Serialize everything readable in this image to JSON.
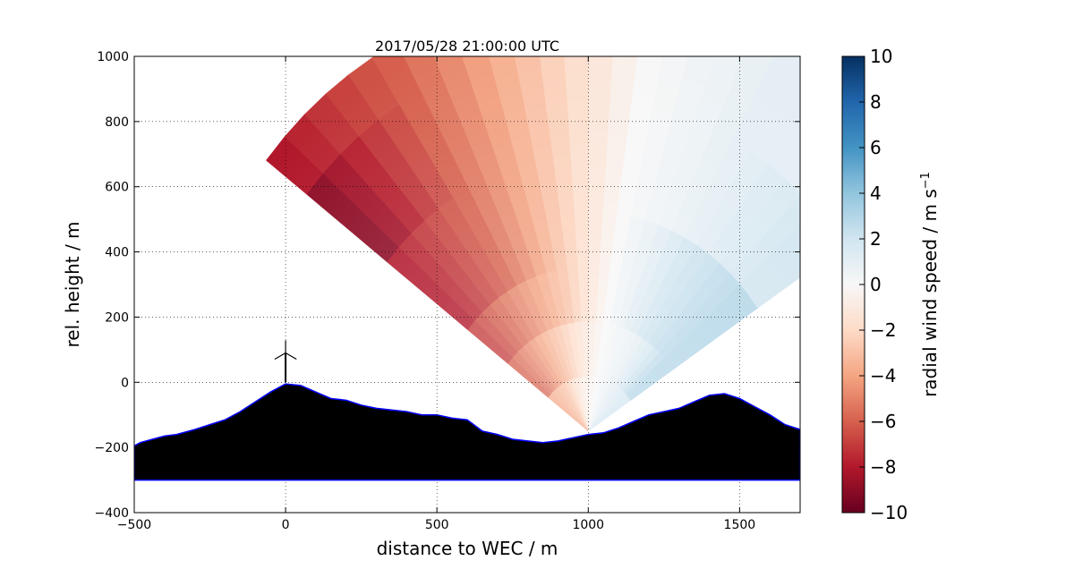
{
  "chart_data": {
    "type": "heatmap",
    "title": "2017/05/28 21:00:00 UTC",
    "xlabel": "distance to WEC / m",
    "ylabel": "rel. height / m",
    "xlim": [
      -500,
      1700
    ],
    "ylim": [
      -400,
      1000
    ],
    "xticks": [
      -500,
      0,
      500,
      1000,
      1500
    ],
    "yticks": [
      -400,
      -200,
      0,
      200,
      400,
      600,
      800,
      1000
    ],
    "xtick_labels": [
      "−500",
      "0",
      "500",
      "1000",
      "1500"
    ],
    "ytick_labels": [
      "−400",
      "−200",
      "0",
      "200",
      "400",
      "600",
      "800",
      "1000"
    ],
    "grid": true,
    "scan": {
      "center": [
        1000,
        -150
      ],
      "azimuth_range_deg": [
        34,
        142
      ],
      "range_m": [
        0,
        1350
      ],
      "radial_wind_speed_by_elevation": [
        {
          "elevation_deg": 140,
          "values": [
            -4,
            -6,
            -7,
            -8,
            -8,
            -9,
            -9,
            -8
          ]
        },
        {
          "elevation_deg": 120,
          "values": [
            -3,
            -4,
            -5,
            -6,
            -6,
            -6,
            -6,
            -6
          ]
        },
        {
          "elevation_deg": 100,
          "values": [
            -1,
            -2,
            -3,
            -3,
            -3,
            -3,
            -3,
            -3
          ]
        },
        {
          "elevation_deg": 80,
          "values": [
            0,
            0,
            0,
            0,
            0,
            0,
            0,
            0
          ]
        },
        {
          "elevation_deg": 60,
          "values": [
            1,
            1,
            2,
            2,
            1,
            1,
            1,
            1
          ]
        },
        {
          "elevation_deg": 40,
          "values": [
            2,
            3,
            3,
            3,
            2,
            2,
            1,
            1
          ]
        }
      ]
    },
    "terrain": {
      "x": [
        -500,
        -480,
        -440,
        -400,
        -360,
        -300,
        -250,
        -200,
        -150,
        -100,
        -50,
        0,
        50,
        100,
        150,
        200,
        250,
        300,
        350,
        400,
        450,
        500,
        550,
        600,
        650,
        700,
        750,
        800,
        850,
        900,
        950,
        1000,
        1050,
        1100,
        1150,
        1200,
        1250,
        1300,
        1350,
        1400,
        1450,
        1500,
        1550,
        1600,
        1650,
        1700
      ],
      "height": [
        -195,
        -185,
        -175,
        -165,
        -160,
        -145,
        -130,
        -115,
        -90,
        -60,
        -30,
        -5,
        -10,
        -30,
        -50,
        -55,
        -70,
        -80,
        -85,
        -90,
        -100,
        -100,
        -110,
        -115,
        -150,
        -160,
        -175,
        -180,
        -185,
        -180,
        -170,
        -160,
        -155,
        -140,
        -120,
        -100,
        -90,
        -80,
        -60,
        -40,
        -35,
        -50,
        -75,
        -100,
        -130,
        -145
      ],
      "base": -300
    },
    "turbine": {
      "x": 0,
      "hub_height": 90
    },
    "colorbar": {
      "label": "radial wind speed / m s",
      "unit_superscript": "−1",
      "range": [
        -10,
        10
      ],
      "ticks": [
        -10,
        -8,
        -6,
        -4,
        -2,
        0,
        2,
        4,
        6,
        8,
        10
      ],
      "tick_labels": [
        "−10",
        "−8",
        "−6",
        "−4",
        "−2",
        "0",
        "2",
        "4",
        "6",
        "8",
        "10"
      ],
      "colormap": [
        "#67001f",
        "#b2182b",
        "#d6604d",
        "#f4a582",
        "#fddbc7",
        "#f7f7f7",
        "#d1e5f0",
        "#92c5de",
        "#4393c3",
        "#2166ac",
        "#053061"
      ]
    },
    "colors": {
      "terrain": "#000000",
      "terrain_edge": "#0000ff",
      "background": "#ffffff"
    }
  }
}
